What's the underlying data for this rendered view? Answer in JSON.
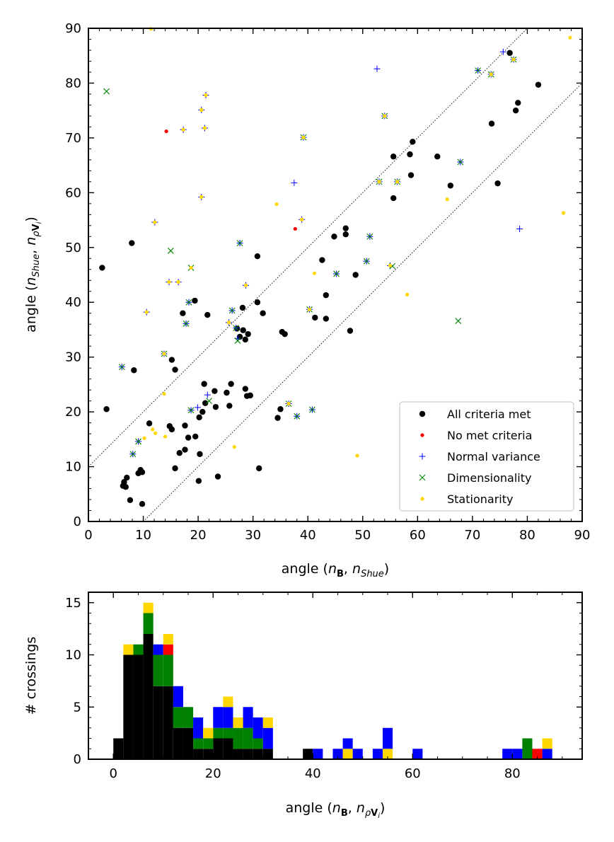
{
  "colors": {
    "all": "#000000",
    "none": "#ff0000",
    "normal": "#0000ff",
    "dim": "#008000",
    "stat": "#ffd700"
  },
  "chart_data": [
    {
      "type": "scatter",
      "xlabel_text": "angle (",
      "xlabel_math": "n_B, n_Shue",
      "ylabel_text": "angle (",
      "ylabel_math": "n_Shue, n_ρV_i",
      "xlim": [
        0,
        90
      ],
      "ylim": [
        0,
        90
      ],
      "xticks": [
        "0",
        "10",
        "20",
        "30",
        "40",
        "50",
        "60",
        "70",
        "80",
        "90"
      ],
      "yticks": [
        "0",
        "10",
        "20",
        "30",
        "40",
        "50",
        "60",
        "70",
        "80",
        "90"
      ],
      "grid": false,
      "legend_position": "lower-right",
      "reference_lines": [
        {
          "x": [
            0,
            80
          ],
          "y": [
            10,
            90
          ]
        },
        {
          "x": [
            10,
            90
          ],
          "y": [
            0,
            80
          ]
        }
      ],
      "series": [
        {
          "name": "All criteria met",
          "color_key": "all",
          "marker": "dot",
          "points": [
            [
              2.5,
              46.3
            ],
            [
              3.3,
              20.5
            ],
            [
              6.3,
              6.5
            ],
            [
              6.5,
              7.2
            ],
            [
              6.8,
              6.3
            ],
            [
              7.0,
              8.0
            ],
            [
              7.6,
              3.9
            ],
            [
              7.9,
              50.8
            ],
            [
              8.3,
              27.6
            ],
            [
              9.1,
              8.8
            ],
            [
              9.5,
              9.4
            ],
            [
              9.8,
              9.0
            ],
            [
              9.8,
              3.2
            ],
            [
              11.1,
              17.9
            ],
            [
              14.8,
              17.4
            ],
            [
              15.2,
              16.8
            ],
            [
              15.2,
              29.5
            ],
            [
              15.8,
              27.7
            ],
            [
              15.8,
              9.7
            ],
            [
              16.6,
              12.5
            ],
            [
              17.2,
              38.0
            ],
            [
              17.6,
              17.5
            ],
            [
              17.6,
              13.1
            ],
            [
              18.2,
              15.3
            ],
            [
              19.4,
              40.3
            ],
            [
              19.5,
              15.5
            ],
            [
              20.1,
              7.4
            ],
            [
              20.2,
              19.0
            ],
            [
              20.3,
              12.3
            ],
            [
              20.8,
              20.0
            ],
            [
              21.1,
              25.1
            ],
            [
              21.3,
              21.6
            ],
            [
              21.7,
              37.7
            ],
            [
              23.0,
              23.8
            ],
            [
              23.2,
              20.9
            ],
            [
              23.6,
              8.2
            ],
            [
              25.2,
              23.5
            ],
            [
              25.7,
              21.1
            ],
            [
              26.0,
              25.1
            ],
            [
              27.1,
              35.2
            ],
            [
              27.6,
              33.7
            ],
            [
              28.1,
              39.0
            ],
            [
              28.2,
              34.9
            ],
            [
              28.6,
              24.2
            ],
            [
              28.6,
              33.2
            ],
            [
              28.9,
              22.9
            ],
            [
              29.1,
              34.2
            ],
            [
              29.5,
              23.0
            ],
            [
              30.8,
              40.0
            ],
            [
              30.8,
              48.4
            ],
            [
              31.1,
              9.7
            ],
            [
              31.8,
              38.0
            ],
            [
              34.5,
              18.9
            ],
            [
              35.0,
              20.5
            ],
            [
              35.3,
              34.6
            ],
            [
              35.8,
              34.2
            ],
            [
              41.3,
              37.2
            ],
            [
              42.6,
              47.7
            ],
            [
              43.3,
              41.3
            ],
            [
              43.3,
              37.0
            ],
            [
              44.8,
              52.0
            ],
            [
              46.9,
              53.5
            ],
            [
              46.9,
              52.4
            ],
            [
              47.7,
              34.8
            ],
            [
              48.7,
              45.0
            ],
            [
              55.6,
              66.6
            ],
            [
              55.6,
              59.0
            ],
            [
              58.6,
              67.0
            ],
            [
              58.8,
              63.2
            ],
            [
              59.1,
              69.3
            ],
            [
              63.6,
              66.6
            ],
            [
              66.0,
              61.3
            ],
            [
              73.5,
              72.6
            ],
            [
              74.6,
              61.7
            ],
            [
              76.8,
              85.5
            ],
            [
              77.9,
              75.0
            ],
            [
              78.3,
              76.4
            ],
            [
              82.0,
              79.7
            ]
          ]
        },
        {
          "name": "No met criteria",
          "color_key": "none",
          "marker": "smalldot",
          "points": [
            [
              14.2,
              71.2
            ],
            [
              37.7,
              53.4
            ]
          ]
        },
        {
          "name": "Normal variance",
          "color_key": "normal",
          "marker": "plus",
          "points": [
            [
              6.1,
              28.2
            ],
            [
              8.1,
              12.3
            ],
            [
              9.1,
              14.6
            ],
            [
              10.6,
              38.2
            ],
            [
              12.1,
              54.6
            ],
            [
              13.8,
              30.6
            ],
            [
              14.7,
              43.7
            ],
            [
              16.4,
              43.7
            ],
            [
              17.3,
              71.5
            ],
            [
              17.8,
              36.1
            ],
            [
              18.3,
              40.0
            ],
            [
              18.7,
              20.3
            ],
            [
              19.9,
              20.8
            ],
            [
              20.6,
              75.1
            ],
            [
              20.6,
              59.2
            ],
            [
              21.2,
              71.8
            ],
            [
              21.4,
              77.8
            ],
            [
              21.7,
              23.1
            ],
            [
              25.6,
              36.3
            ],
            [
              26.2,
              38.5
            ],
            [
              26.9,
              35.3
            ],
            [
              27.2,
              33.4
            ],
            [
              27.6,
              50.8
            ],
            [
              28.7,
              43.1
            ],
            [
              36.5,
              21.5
            ],
            [
              37.5,
              61.8
            ],
            [
              38.0,
              19.2
            ],
            [
              38.9,
              55.1
            ],
            [
              39.2,
              70.1
            ],
            [
              40.3,
              38.7
            ],
            [
              40.8,
              20.4
            ],
            [
              45.2,
              45.2
            ],
            [
              50.7,
              47.5
            ],
            [
              51.3,
              52.0
            ],
            [
              52.6,
              82.6
            ],
            [
              53.0,
              62.0
            ],
            [
              54.0,
              74.0
            ],
            [
              55.0,
              46.7
            ],
            [
              56.3,
              62.0
            ],
            [
              67.8,
              65.6
            ],
            [
              71.0,
              82.3
            ],
            [
              73.4,
              81.6
            ],
            [
              75.6,
              85.7
            ],
            [
              77.5,
              84.3
            ],
            [
              78.6,
              53.4
            ]
          ]
        },
        {
          "name": "Dimensionality",
          "color_key": "dim",
          "marker": "x",
          "points": [
            [
              3.3,
              78.5
            ],
            [
              6.1,
              28.2
            ],
            [
              8.1,
              12.3
            ],
            [
              9.1,
              14.6
            ],
            [
              13.8,
              30.6
            ],
            [
              15.0,
              49.4
            ],
            [
              17.8,
              36.1
            ],
            [
              18.3,
              40.0
            ],
            [
              18.7,
              20.3
            ],
            [
              18.7,
              46.3
            ],
            [
              22.0,
              22.0
            ],
            [
              26.2,
              38.5
            ],
            [
              26.9,
              35.3
            ],
            [
              27.2,
              33.0
            ],
            [
              27.6,
              50.8
            ],
            [
              36.5,
              21.5
            ],
            [
              38.0,
              19.2
            ],
            [
              39.2,
              70.1
            ],
            [
              40.3,
              38.7
            ],
            [
              40.8,
              20.4
            ],
            [
              45.2,
              45.2
            ],
            [
              50.7,
              47.5
            ],
            [
              51.3,
              52.0
            ],
            [
              53.0,
              62.0
            ],
            [
              54.0,
              74.0
            ],
            [
              55.4,
              46.6
            ],
            [
              56.3,
              62.0
            ],
            [
              67.4,
              36.6
            ],
            [
              67.8,
              65.6
            ],
            [
              71.0,
              82.3
            ],
            [
              73.4,
              81.6
            ],
            [
              77.5,
              84.3
            ]
          ]
        },
        {
          "name": "Stationarity",
          "color_key": "stat",
          "marker": "smalldot",
          "points": [
            [
              10.2,
              15.2
            ],
            [
              11.4,
              89.9
            ],
            [
              11.7,
              16.8
            ],
            [
              12.2,
              16.1
            ],
            [
              13.8,
              23.3
            ],
            [
              13.8,
              30.6
            ],
            [
              14.0,
              15.5
            ],
            [
              10.6,
              38.2
            ],
            [
              12.1,
              54.6
            ],
            [
              14.7,
              43.7
            ],
            [
              16.4,
              43.7
            ],
            [
              17.3,
              71.5
            ],
            [
              18.7,
              46.3
            ],
            [
              20.6,
              75.1
            ],
            [
              20.6,
              59.2
            ],
            [
              21.2,
              71.8
            ],
            [
              21.4,
              77.8
            ],
            [
              25.6,
              36.3
            ],
            [
              26.6,
              13.6
            ],
            [
              28.7,
              43.1
            ],
            [
              34.3,
              57.9
            ],
            [
              36.5,
              21.5
            ],
            [
              38.9,
              55.1
            ],
            [
              39.2,
              70.1
            ],
            [
              40.3,
              38.7
            ],
            [
              41.2,
              45.3
            ],
            [
              49.0,
              12.0
            ],
            [
              53.0,
              62.0
            ],
            [
              54.0,
              74.0
            ],
            [
              55.0,
              46.7
            ],
            [
              56.3,
              62.0
            ],
            [
              58.1,
              41.4
            ],
            [
              65.4,
              58.8
            ],
            [
              73.4,
              81.6
            ],
            [
              77.5,
              84.3
            ],
            [
              86.6,
              56.3
            ],
            [
              87.8,
              88.3
            ]
          ]
        }
      ]
    },
    {
      "type": "bar",
      "stacked": true,
      "xlabel_text": "angle (",
      "xlabel_math": "n_B, n_ρV_i",
      "ylabel": "# crossings",
      "xlim": [
        -5,
        94
      ],
      "ylim": [
        0,
        16
      ],
      "xticks": [
        "0",
        "20",
        "40",
        "60",
        "80"
      ],
      "yticks": [
        "0",
        "5",
        "10",
        "15"
      ],
      "grid": false,
      "bin_start": 0,
      "bin_width": 2,
      "series_order": [
        "All criteria met",
        "Dimensionality",
        "Normal variance",
        "No met criteria",
        "Stationarity"
      ],
      "counts": {
        "All criteria met": [
          2,
          10,
          10,
          12,
          7,
          7,
          3,
          3,
          1,
          1,
          2,
          2,
          1,
          1,
          1,
          1,
          0,
          0,
          0,
          1,
          0,
          0,
          0,
          0,
          0,
          0,
          0,
          0,
          0,
          0,
          0,
          0,
          0,
          0,
          0,
          0,
          0,
          0,
          0,
          0,
          0,
          0,
          0,
          0
        ],
        "Dimensionality": [
          0,
          0,
          1,
          2,
          3,
          3,
          2,
          2,
          1,
          1,
          1,
          1,
          2,
          2,
          1,
          0,
          0,
          0,
          0,
          0,
          0,
          0,
          0,
          0,
          0,
          0,
          0,
          0,
          0,
          0,
          0,
          0,
          0,
          0,
          0,
          0,
          0,
          0,
          0,
          0,
          0,
          2,
          0,
          0
        ],
        "Normal variance": [
          0,
          0,
          0,
          0,
          1,
          0,
          2,
          0,
          2,
          0,
          2,
          2,
          0,
          2,
          2,
          2,
          0,
          0,
          0,
          0,
          0,
          0,
          1,
          0,
          0,
          0,
          0,
          0,
          0,
          0,
          0,
          0,
          0,
          0,
          0,
          0,
          0,
          0,
          0,
          0,
          0,
          0,
          0,
          1
        ],
        "No met criteria": [
          0,
          0,
          0,
          0,
          0,
          1,
          0,
          0,
          0,
          0,
          0,
          0,
          0,
          0,
          0,
          0,
          0,
          0,
          0,
          0,
          0,
          0,
          0,
          0,
          0,
          0,
          0,
          0,
          0,
          0,
          0,
          0,
          0,
          0,
          0,
          0,
          0,
          0,
          0,
          0,
          0,
          0,
          1,
          0
        ],
        "Stationarity": [
          0,
          1,
          0,
          1,
          0,
          1,
          0,
          0,
          0,
          1,
          0,
          1,
          1,
          0,
          0,
          1,
          0,
          0,
          0,
          0,
          0,
          0,
          0,
          1,
          0,
          0,
          0,
          1,
          0,
          0,
          0,
          0,
          0,
          0,
          0,
          0,
          0,
          0,
          0,
          0,
          0,
          0,
          0,
          1
        ]
      },
      "extra_bars": [
        {
          "series": "Normal variance",
          "bin": 20,
          "value": 1
        },
        {
          "series": "Normal variance",
          "bin": 23,
          "value": 1
        },
        {
          "series": "Normal variance",
          "bin": 24,
          "value": 1
        },
        {
          "series": "Normal variance",
          "bin": 26,
          "value": 1
        },
        {
          "series": "Normal variance",
          "bin": 27,
          "value": 2
        },
        {
          "series": "Normal variance",
          "bin": 30,
          "value": 1
        },
        {
          "series": "Normal variance",
          "bin": 39,
          "value": 1
        },
        {
          "series": "Normal variance",
          "bin": 40,
          "value": 1
        }
      ]
    }
  ]
}
